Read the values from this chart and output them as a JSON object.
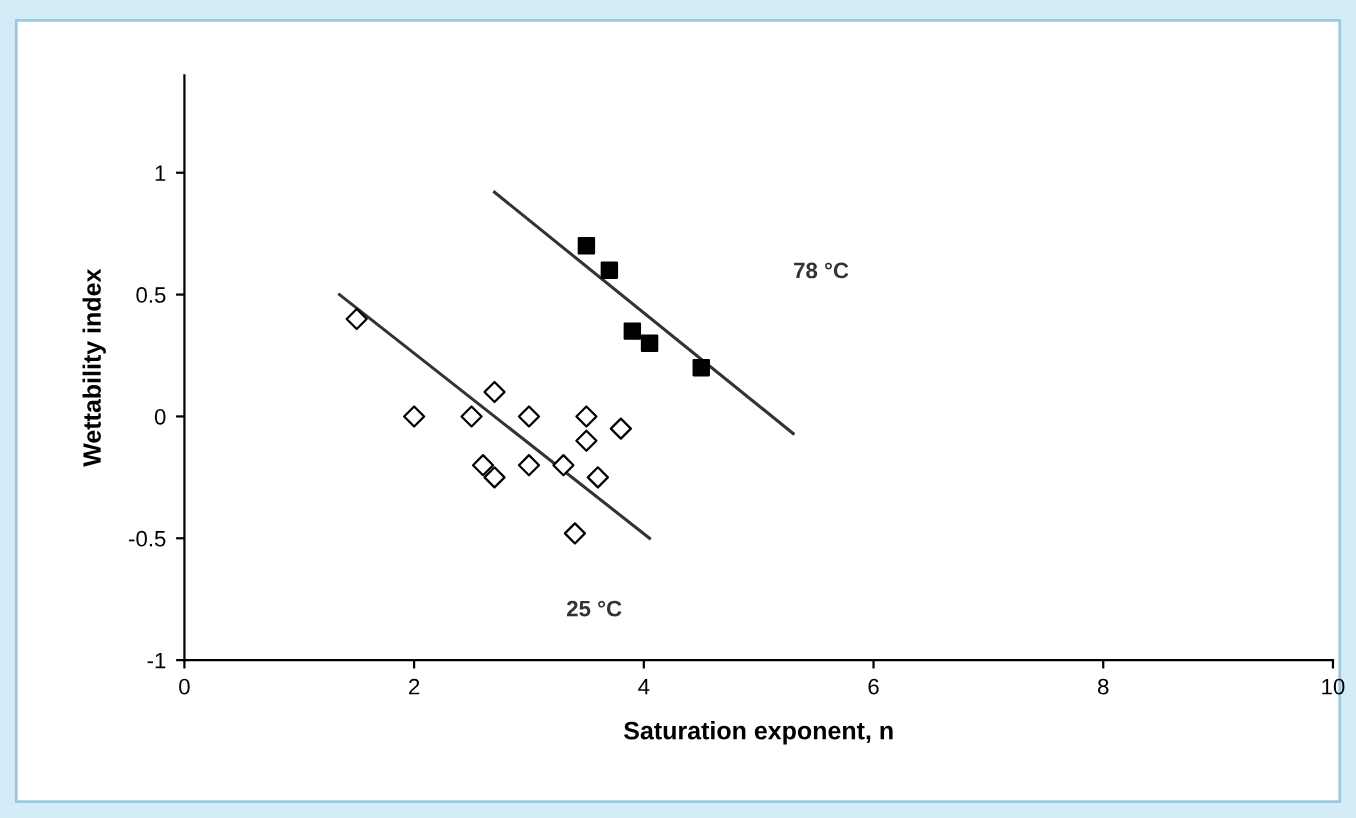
{
  "chart_data": {
    "type": "scatter",
    "xlabel": "Saturation exponent, n",
    "ylabel": "Wettability index",
    "xlim": [
      0,
      10
    ],
    "xticks": [
      0,
      2,
      4,
      6,
      8,
      10
    ],
    "ylim": [
      -1,
      1.4
    ],
    "yticks": [
      -1,
      -0.5,
      0,
      0.5,
      1
    ],
    "grid": false,
    "legend": false,
    "series": [
      {
        "marker": "diamond",
        "color": "#000000",
        "x": [
          1.5,
          2,
          2.5,
          2.6,
          2.7,
          2.7,
          3,
          3,
          3.3,
          3.5,
          3.5,
          3.6,
          3.8,
          3.4
        ],
        "values": [
          0.4,
          0,
          0,
          -0.2,
          0.1,
          -0.25,
          0,
          -0.2,
          -0.2,
          0,
          -0.1,
          -0.25,
          -0.05,
          -0.48
        ]
      },
      {
        "marker": "square",
        "color": "#000000",
        "x": [
          3.5,
          3.7,
          3.9,
          4.05,
          4.5
        ],
        "values": [
          0.7,
          0.6,
          0.35,
          0.3,
          0.2
        ]
      },
      {
        "type": "line",
        "marker": "none",
        "color": "#333333",
        "x": [
          1.35,
          4.05
        ],
        "values": [
          0.5,
          -0.5
        ]
      },
      {
        "type": "line",
        "marker": "none",
        "color": "#333333",
        "x": [
          2.7,
          5.3
        ],
        "values": [
          0.92,
          -0.07
        ]
      }
    ],
    "annotations": [
      "25 °C",
      "78 °C"
    ]
  }
}
